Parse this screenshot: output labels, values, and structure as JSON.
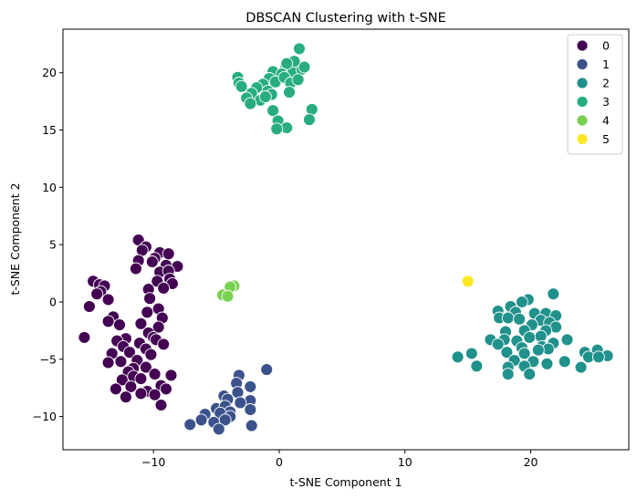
{
  "chart_data": {
    "type": "scatter",
    "title": "DBSCAN Clustering with t-SNE",
    "xlabel": "t-SNE Component 1",
    "ylabel": "t-SNE Component 2",
    "xlim": [
      -17.2,
      27.8
    ],
    "ylim": [
      -12.9,
      23.8
    ],
    "xticks": [
      -10,
      0,
      10,
      20
    ],
    "yticks": [
      -10,
      -5,
      0,
      5,
      10,
      15,
      20
    ],
    "grid": false,
    "legend_position": "top-right",
    "series": [
      {
        "name": "0",
        "color": "#440154",
        "points": [
          [
            -11.2,
            5.4
          ],
          [
            -10.6,
            4.8
          ],
          [
            -10.9,
            4.5
          ],
          [
            -9.5,
            4.3
          ],
          [
            -8.8,
            4.2
          ],
          [
            -9.9,
            3.8
          ],
          [
            -10.1,
            3.5
          ],
          [
            -11.2,
            3.6
          ],
          [
            -11.4,
            2.9
          ],
          [
            -9.0,
            3.2
          ],
          [
            -8.1,
            3.1
          ],
          [
            -9.5,
            2.6
          ],
          [
            -8.8,
            2.7
          ],
          [
            -8.7,
            2.0
          ],
          [
            -9.7,
            1.8
          ],
          [
            -8.5,
            1.6
          ],
          [
            -10.4,
            1.1
          ],
          [
            -9.2,
            1.2
          ],
          [
            -14.8,
            1.8
          ],
          [
            -14.3,
            1.5
          ],
          [
            -13.9,
            1.4
          ],
          [
            -14.2,
            0.9
          ],
          [
            -14.5,
            0.7
          ],
          [
            -13.6,
            0.2
          ],
          [
            -15.1,
            -0.4
          ],
          [
            -10.3,
            0.3
          ],
          [
            -9.6,
            -0.6
          ],
          [
            -10.5,
            -0.9
          ],
          [
            -9.3,
            -1.4
          ],
          [
            -13.2,
            -1.3
          ],
          [
            -13.6,
            -1.7
          ],
          [
            -12.7,
            -2.0
          ],
          [
            -11.0,
            -1.9
          ],
          [
            -9.6,
            -2.2
          ],
          [
            -10.4,
            -2.7
          ],
          [
            -12.2,
            -3.2
          ],
          [
            -12.9,
            -3.4
          ],
          [
            -10.0,
            -3.1
          ],
          [
            -9.8,
            -3.3
          ],
          [
            -11.1,
            -3.6
          ],
          [
            -9.2,
            -3.7
          ],
          [
            -12.4,
            -3.9
          ],
          [
            -10.6,
            -4.1
          ],
          [
            -13.3,
            -4.5
          ],
          [
            -11.9,
            -4.4
          ],
          [
            -10.2,
            -4.6
          ],
          [
            -11.3,
            -5.1
          ],
          [
            -12.6,
            -5.2
          ],
          [
            -13.6,
            -5.3
          ],
          [
            -11.6,
            -5.8
          ],
          [
            -10.6,
            -5.7
          ],
          [
            -12.0,
            -6.1
          ],
          [
            -9.9,
            -6.3
          ],
          [
            -8.6,
            -6.4
          ],
          [
            -11.6,
            -6.5
          ],
          [
            -11.0,
            -6.7
          ],
          [
            -12.5,
            -6.8
          ],
          [
            -13.0,
            -7.6
          ],
          [
            -11.8,
            -7.4
          ],
          [
            -10.5,
            -7.8
          ],
          [
            -9.4,
            -7.3
          ],
          [
            -9.0,
            -7.6
          ],
          [
            -12.2,
            -8.3
          ],
          [
            -11.0,
            -8.0
          ],
          [
            -9.9,
            -8.1
          ],
          [
            -9.4,
            -9.0
          ],
          [
            -15.5,
            -3.1
          ]
        ]
      },
      {
        "name": "1",
        "color": "#3b528b",
        "points": [
          [
            -3.2,
            -6.4
          ],
          [
            -1.0,
            -5.9
          ],
          [
            -3.4,
            -7.1
          ],
          [
            -2.3,
            -7.4
          ],
          [
            -3.3,
            -7.9
          ],
          [
            -4.4,
            -8.2
          ],
          [
            -4.1,
            -8.5
          ],
          [
            -2.3,
            -8.6
          ],
          [
            -3.1,
            -8.8
          ],
          [
            -5.0,
            -9.3
          ],
          [
            -4.3,
            -9.1
          ],
          [
            -3.9,
            -9.6
          ],
          [
            -2.3,
            -9.4
          ],
          [
            -4.7,
            -9.7
          ],
          [
            -3.9,
            -10.0
          ],
          [
            -5.9,
            -9.8
          ],
          [
            -6.2,
            -10.3
          ],
          [
            -5.2,
            -10.5
          ],
          [
            -4.3,
            -10.3
          ],
          [
            -7.1,
            -10.7
          ],
          [
            -4.8,
            -11.1
          ],
          [
            -2.2,
            -10.8
          ]
        ]
      },
      {
        "name": "2",
        "color": "#21918c",
        "points": [
          [
            21.8,
            0.7
          ],
          [
            19.8,
            0.2
          ],
          [
            19.3,
            0.0
          ],
          [
            18.4,
            -0.4
          ],
          [
            17.4,
            -0.8
          ],
          [
            18.8,
            -0.9
          ],
          [
            20.3,
            -1.0
          ],
          [
            21.2,
            -1.0
          ],
          [
            22.0,
            -1.2
          ],
          [
            17.5,
            -1.4
          ],
          [
            18.2,
            -1.4
          ],
          [
            19.1,
            -1.5
          ],
          [
            20.8,
            -1.6
          ],
          [
            21.5,
            -1.8
          ],
          [
            20.1,
            -2.0
          ],
          [
            22.0,
            -2.2
          ],
          [
            19.5,
            -2.5
          ],
          [
            18.0,
            -2.6
          ],
          [
            21.2,
            -2.5
          ],
          [
            20.8,
            -3.0
          ],
          [
            19.9,
            -3.1
          ],
          [
            22.9,
            -3.3
          ],
          [
            17.9,
            -3.3
          ],
          [
            18.9,
            -3.4
          ],
          [
            16.8,
            -3.3
          ],
          [
            21.8,
            -3.6
          ],
          [
            17.4,
            -3.7
          ],
          [
            20.9,
            -3.9
          ],
          [
            19.3,
            -4.0
          ],
          [
            21.4,
            -4.1
          ],
          [
            20.6,
            -4.2
          ],
          [
            18.1,
            -4.4
          ],
          [
            19.5,
            -4.5
          ],
          [
            15.3,
            -4.5
          ],
          [
            24.3,
            -4.4
          ],
          [
            25.3,
            -4.2
          ],
          [
            14.2,
            -4.8
          ],
          [
            26.1,
            -4.7
          ],
          [
            24.6,
            -4.8
          ],
          [
            18.7,
            -5.1
          ],
          [
            20.2,
            -5.2
          ],
          [
            22.7,
            -5.2
          ],
          [
            25.4,
            -4.8
          ],
          [
            21.3,
            -5.4
          ],
          [
            19.5,
            -5.6
          ],
          [
            15.7,
            -5.6
          ],
          [
            18.2,
            -5.7
          ],
          [
            24.0,
            -5.7
          ],
          [
            19.9,
            -6.3
          ],
          [
            18.2,
            -6.3
          ]
        ]
      },
      {
        "name": "3",
        "color": "#27ad81",
        "points": [
          [
            1.6,
            22.1
          ],
          [
            -3.3,
            19.6
          ],
          [
            -3.2,
            19.1
          ],
          [
            -3.0,
            18.8
          ],
          [
            -0.5,
            20.1
          ],
          [
            0.5,
            20.4
          ],
          [
            1.1,
            20.1
          ],
          [
            1.8,
            20.3
          ],
          [
            2.0,
            20.5
          ],
          [
            1.2,
            21.0
          ],
          [
            0.6,
            20.8
          ],
          [
            0.2,
            19.9
          ],
          [
            -0.8,
            19.5
          ],
          [
            -0.3,
            19.2
          ],
          [
            0.4,
            19.6
          ],
          [
            0.9,
            19.1
          ],
          [
            1.5,
            19.4
          ],
          [
            -1.3,
            19.0
          ],
          [
            -1.8,
            18.7
          ],
          [
            -0.9,
            18.4
          ],
          [
            0.8,
            18.3
          ],
          [
            -0.6,
            18.1
          ],
          [
            -2.2,
            18.2
          ],
          [
            -2.6,
            17.8
          ],
          [
            -1.5,
            17.6
          ],
          [
            -2.3,
            17.3
          ],
          [
            -0.5,
            16.7
          ],
          [
            2.6,
            16.8
          ],
          [
            -0.1,
            15.8
          ],
          [
            0.6,
            15.2
          ],
          [
            -0.2,
            15.1
          ],
          [
            2.4,
            15.9
          ],
          [
            -1.1,
            17.9
          ]
        ]
      },
      {
        "name": "4",
        "color": "#7ad151",
        "points": [
          [
            -3.6,
            1.4
          ],
          [
            -3.9,
            1.3
          ],
          [
            -4.5,
            0.6
          ],
          [
            -4.1,
            0.5
          ]
        ]
      },
      {
        "name": "5",
        "color": "#fde725",
        "points": [
          [
            15.0,
            1.8
          ]
        ]
      }
    ]
  }
}
